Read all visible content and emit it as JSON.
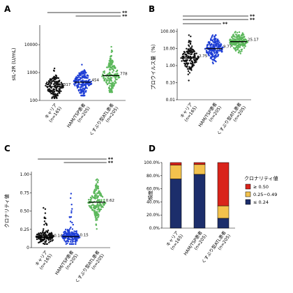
{
  "panel_letters": [
    "A",
    "B",
    "C",
    "D"
  ],
  "categories": [
    {
      "label": "キャリア",
      "n": "(n=165)"
    },
    {
      "label": "HAM/TSP患者",
      "n": "(n=205)"
    },
    {
      "label": "くすぶり型ATL患者",
      "n": "(n=205)"
    }
  ],
  "colors": {
    "carrier": "#111111",
    "ham": "#1f3fd6",
    "atl": "#5cb85c",
    "bar_low": "#1c2e6b",
    "bar_mid": "#f3c24d",
    "bar_high": "#d9241b"
  },
  "significance": "**",
  "chart_data": [
    {
      "panel": "A",
      "type": "scatter",
      "ylabel": "sIL-2R (U/mL)",
      "yscale": "log",
      "ylim": [
        100,
        40000
      ],
      "yticks": [
        100,
        1000,
        10000
      ],
      "ytick_labels": [
        "100",
        "1000",
        "10000"
      ],
      "medians": [
        317,
        454,
        778
      ],
      "median_labels": [
        "317",
        "454",
        "778"
      ],
      "spread": [
        [
          120,
          3000
        ],
        [
          150,
          4000
        ],
        [
          200,
          40000
        ]
      ]
    },
    {
      "panel": "B",
      "type": "scatter",
      "ylabel": "プロウイルス量（%）",
      "yscale": "log",
      "ylim": [
        0.01,
        100
      ],
      "yticks": [
        0.01,
        0.1,
        1,
        10,
        100
      ],
      "ytick_labels": [
        "0.01",
        "0.10",
        "1.00",
        "10.00",
        "100.00"
      ],
      "medians": [
        2.75,
        9.77,
        25.17
      ],
      "median_labels": [
        "2.75",
        "9.77",
        "25.17"
      ],
      "spread": [
        [
          0.1,
          60
        ],
        [
          0.4,
          60
        ],
        [
          3,
          100
        ]
      ]
    },
    {
      "panel": "C",
      "type": "scatter",
      "ylabel": "クロナリティ値",
      "yscale": "linear",
      "ylim": [
        0,
        1.0
      ],
      "yticks": [
        0,
        0.25,
        0.5,
        0.75,
        1.0
      ],
      "ytick_labels": [
        "0",
        "0.25",
        "0.50",
        "0.75",
        "1.00"
      ],
      "medians": [
        0.14,
        0.15,
        0.62
      ],
      "median_labels": [
        "0.14",
        "0.15",
        "0.62"
      ],
      "spread": [
        [
          0.05,
          0.85
        ],
        [
          0.05,
          0.85
        ],
        [
          0.1,
          1.0
        ]
      ]
    },
    {
      "panel": "D",
      "type": "bar",
      "ylabel": "頻度",
      "ylim": [
        0,
        100
      ],
      "yticks": [
        0,
        20,
        40,
        60,
        80,
        100
      ],
      "ytick_labels": [
        "0.0%",
        "20.0%",
        "40.0%",
        "60.0%",
        "80.0%",
        "100.0%"
      ],
      "legend_title": "クロナリティ値",
      "series": [
        {
          "name": "≤ 0.24",
          "values": [
            75,
            82,
            15
          ]
        },
        {
          "name": "0.25−0.49",
          "values": [
            21,
            15,
            19
          ]
        },
        {
          "name": "≥ 0.50",
          "values": [
            4,
            3,
            66
          ]
        }
      ]
    }
  ]
}
